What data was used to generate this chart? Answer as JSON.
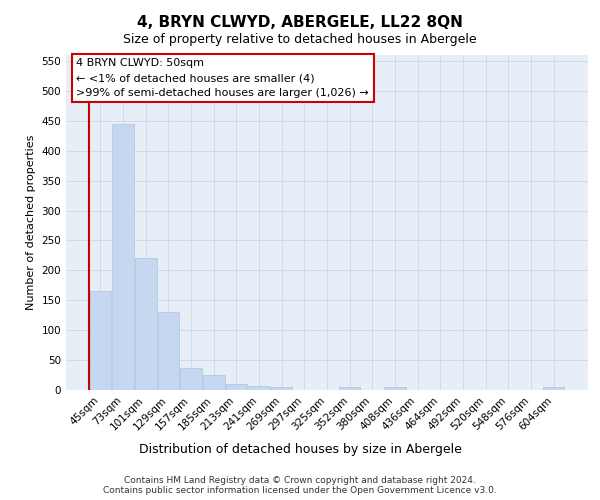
{
  "title": "4, BRYN CLWYD, ABERGELE, LL22 8QN",
  "subtitle": "Size of property relative to detached houses in Abergele",
  "xlabel": "Distribution of detached houses by size in Abergele",
  "ylabel": "Number of detached properties",
  "categories": [
    "45sqm",
    "73sqm",
    "101sqm",
    "129sqm",
    "157sqm",
    "185sqm",
    "213sqm",
    "241sqm",
    "269sqm",
    "297sqm",
    "325sqm",
    "352sqm",
    "380sqm",
    "408sqm",
    "436sqm",
    "464sqm",
    "492sqm",
    "520sqm",
    "548sqm",
    "576sqm",
    "604sqm"
  ],
  "values": [
    165,
    445,
    220,
    130,
    37,
    25,
    10,
    6,
    5,
    0,
    0,
    5,
    0,
    5,
    0,
    0,
    0,
    0,
    0,
    0,
    5
  ],
  "bar_color": "#c5d8ef",
  "bar_edgecolor": "#a8c4e0",
  "highlight_bar_index": 0,
  "annotation_box_text": "4 BRYN CLWYD: 50sqm\n← <1% of detached houses are smaller (4)\n>99% of semi-detached houses are larger (1,026) →",
  "annotation_box_color": "#ffffff",
  "annotation_box_edgecolor": "#cc0000",
  "red_line_color": "#cc0000",
  "ylim": [
    0,
    560
  ],
  "yticks": [
    0,
    50,
    100,
    150,
    200,
    250,
    300,
    350,
    400,
    450,
    500,
    550
  ],
  "grid_color": "#c8d4e0",
  "background_color": "#e8eef8",
  "footer_line1": "Contains HM Land Registry data © Crown copyright and database right 2024.",
  "footer_line2": "Contains public sector information licensed under the Open Government Licence v3.0.",
  "title_fontsize": 11,
  "subtitle_fontsize": 9,
  "xlabel_fontsize": 9,
  "ylabel_fontsize": 8,
  "tick_fontsize": 7.5,
  "annotation_fontsize": 8,
  "footer_fontsize": 6.5
}
